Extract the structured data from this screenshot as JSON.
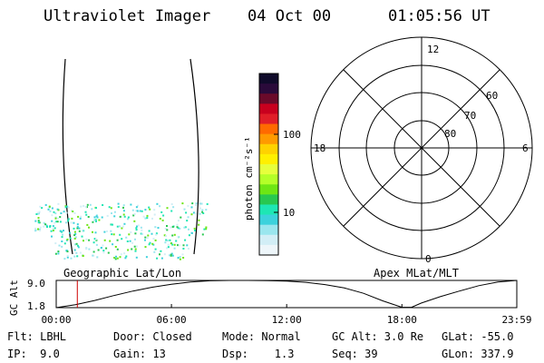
{
  "header": {
    "instrument": "Ultraviolet Imager",
    "date": "04 Oct 00",
    "time": "01:05:56 UT"
  },
  "image_panel": {
    "label": "Geographic Lat/Lon"
  },
  "polar_panel": {
    "label": "Apex MLat/MLT",
    "mlt_labels": [
      "12",
      "18",
      "6",
      "0"
    ],
    "lat_labels": [
      "60",
      "70",
      "80"
    ]
  },
  "colorbar": {
    "unit_label": "photon cm⁻²s⁻¹",
    "tick_labels": [
      "100",
      "10"
    ],
    "scale": "log",
    "colors": [
      "#0f0a2a",
      "#2a0a3a",
      "#6a0a2a",
      "#c8001e",
      "#e01e28",
      "#ff6a00",
      "#ff9a00",
      "#ffd200",
      "#fff000",
      "#e6ff3c",
      "#b4ff28",
      "#6ee614",
      "#28c850",
      "#1ee6b4",
      "#3cd2dc",
      "#9ae6ee",
      "#d2eef6",
      "#eef6fa"
    ]
  },
  "chart_data": {
    "type": "line",
    "ylabel": "GC Alt",
    "yticks": [
      "9.0",
      "1.8"
    ],
    "ylim": [
      1.8,
      9.0
    ],
    "xticks": [
      "00:00",
      "06:00",
      "12:00",
      "18:00",
      "23:59"
    ],
    "xlim_hours": [
      0,
      23.983
    ],
    "current_time_hours": 1.099,
    "series": [
      {
        "x": [
          0,
          1,
          2,
          3,
          4,
          5,
          6,
          7,
          8,
          9,
          10,
          11,
          12,
          13,
          14,
          15,
          16,
          17,
          18,
          18.5,
          19,
          20,
          21,
          22,
          23,
          23.98
        ],
        "y": [
          1.8,
          2.6,
          3.7,
          5.0,
          6.2,
          7.2,
          8.0,
          8.6,
          8.9,
          9.0,
          9.0,
          8.95,
          8.8,
          8.5,
          7.9,
          7.0,
          5.6,
          3.6,
          1.9,
          1.9,
          3.0,
          4.7,
          6.2,
          7.6,
          8.6,
          9.0
        ]
      }
    ]
  },
  "footer": {
    "rows": [
      [
        "Flt: LBHL",
        "Door: Closed",
        "Mode: Normal",
        "GC Alt: 3.0 Re",
        "GLat: -55.0"
      ],
      [
        "IP:  9.0",
        "Gain: 13",
        "Dsp:    1.3",
        "Seq: 39",
        "GLon: 337.9"
      ]
    ]
  }
}
